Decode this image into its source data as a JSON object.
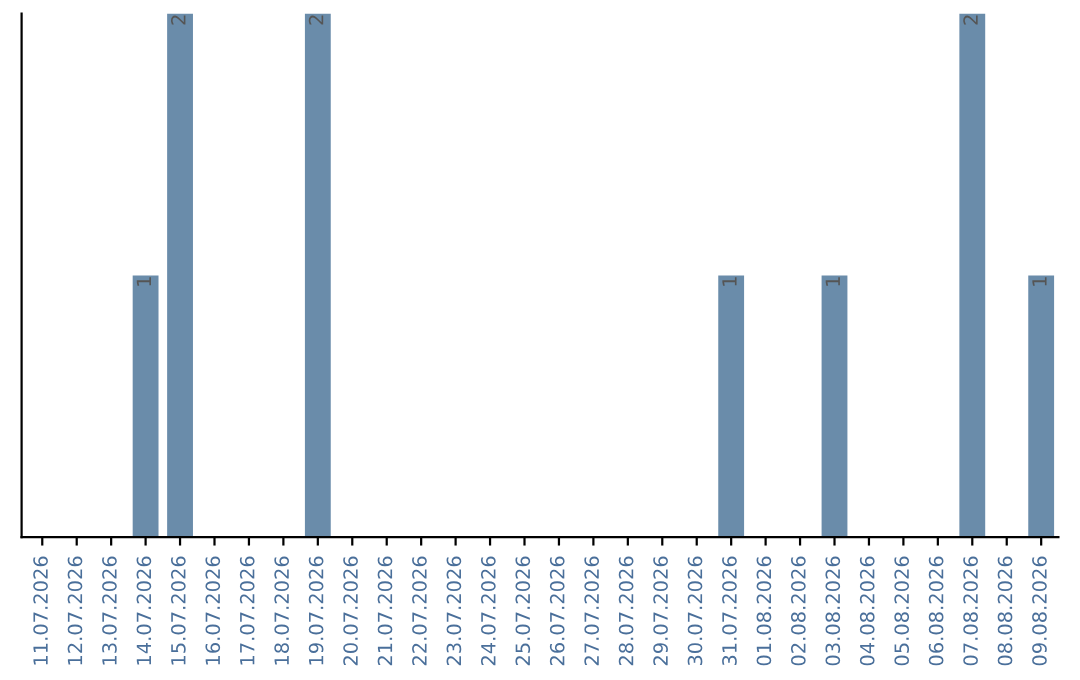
{
  "chart_data": {
    "type": "bar",
    "categories": [
      "11.07.2026",
      "12.07.2026",
      "13.07.2026",
      "14.07.2026",
      "15.07.2026",
      "16.07.2026",
      "17.07.2026",
      "18.07.2026",
      "19.07.2026",
      "20.07.2026",
      "21.07.2026",
      "22.07.2026",
      "23.07.2026",
      "24.07.2026",
      "25.07.2026",
      "26.07.2026",
      "27.07.2026",
      "28.07.2026",
      "29.07.2026",
      "30.07.2026",
      "31.07.2026",
      "01.08.2026",
      "02.08.2026",
      "03.08.2026",
      "04.08.2026",
      "05.08.2026",
      "06.08.2026",
      "07.08.2026",
      "08.08.2026",
      "09.08.2026"
    ],
    "values": [
      0,
      0,
      0,
      1,
      2,
      0,
      0,
      0,
      2,
      0,
      0,
      0,
      0,
      0,
      0,
      0,
      0,
      0,
      0,
      0,
      1,
      0,
      0,
      1,
      0,
      0,
      0,
      2,
      0,
      1
    ],
    "value_labels": [
      null,
      null,
      null,
      "1",
      "2",
      null,
      null,
      null,
      "2",
      null,
      null,
      null,
      null,
      null,
      null,
      null,
      null,
      null,
      null,
      null,
      "1",
      null,
      null,
      "1",
      null,
      null,
      null,
      "2",
      null,
      "1"
    ],
    "color": "#6a8caa",
    "tick_labels": "x",
    "grid": false
  }
}
